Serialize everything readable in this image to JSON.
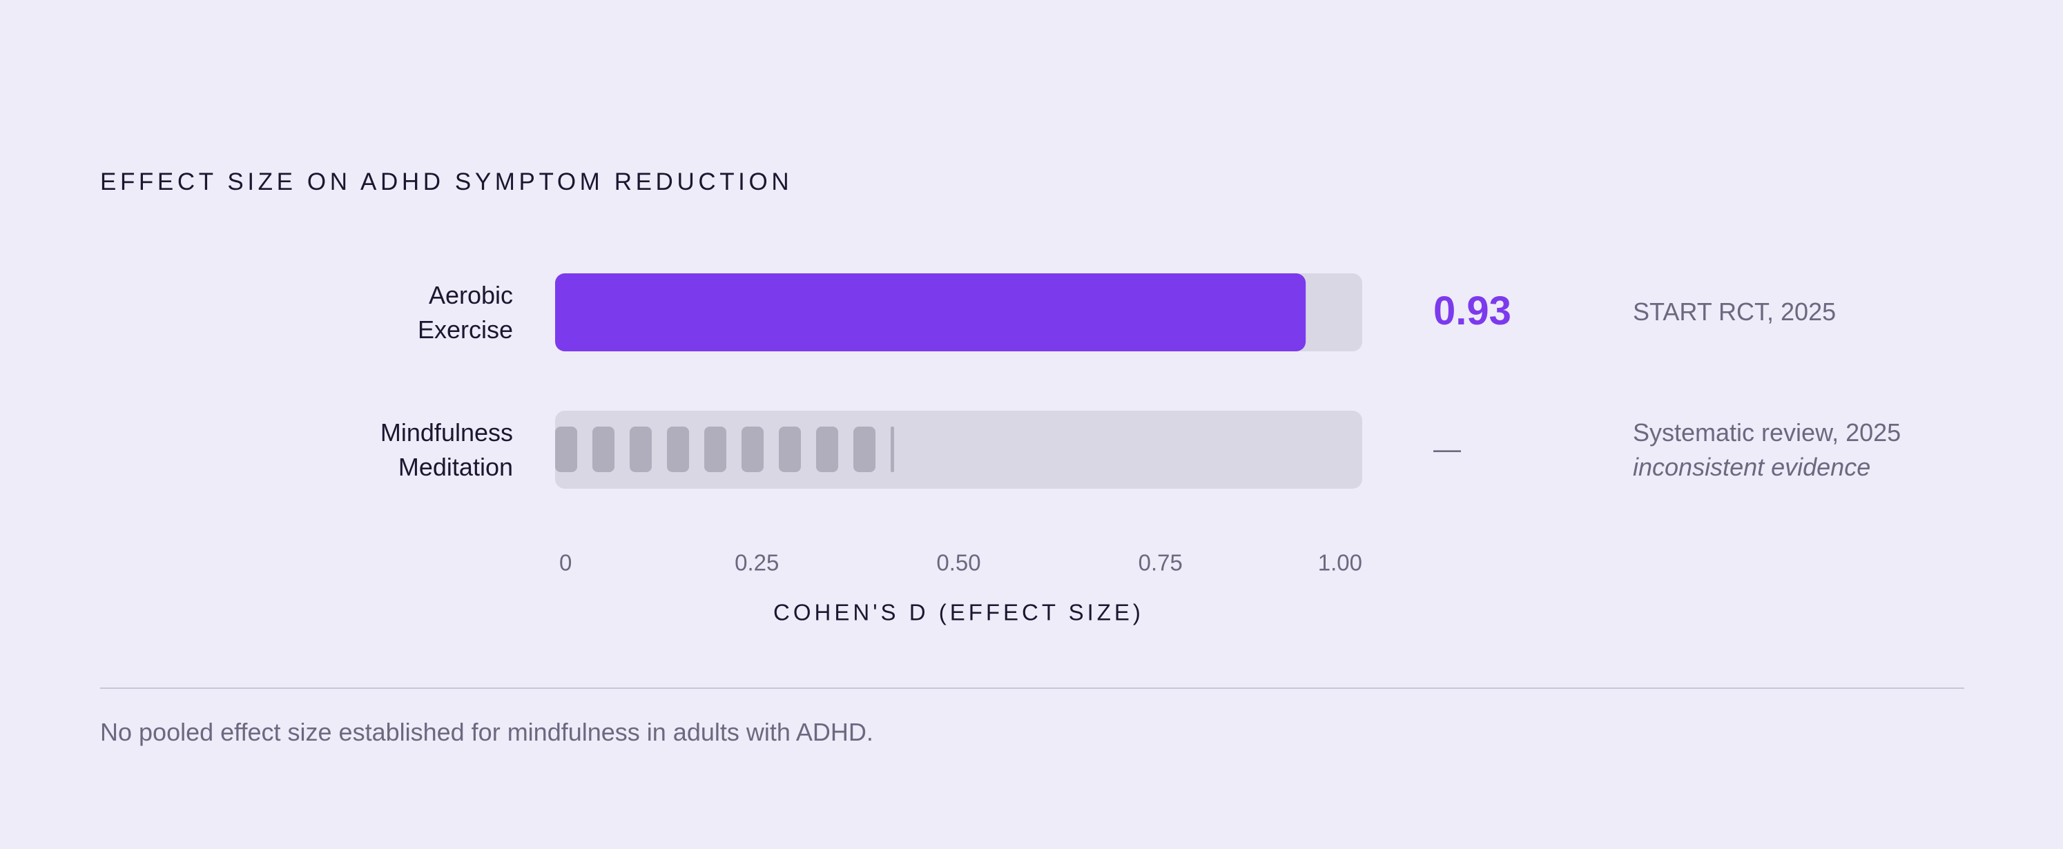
{
  "chart_data": {
    "type": "bar",
    "orientation": "horizontal",
    "title": "EFFECT SIZE ON ADHD SYMPTOM REDUCTION",
    "categories": [
      "Aerobic Exercise",
      "Mindfulness Meditation"
    ],
    "values": [
      0.93,
      null
    ],
    "value_labels": [
      "0.93",
      "—"
    ],
    "sources": [
      "START RCT, 2025",
      "Systematic review, 2025"
    ],
    "evidence_note": "inconsistent evidence",
    "color": "#7c3aed",
    "xlim": [
      0,
      1
    ],
    "xticks": [
      0,
      0.25,
      {
        "value": 0.5,
        "label": "0.50"
      },
      0.75,
      {
        "value": 1,
        "label": "1.00"
      }
    ],
    "xlabel": "COHEN'S D (EFFECT SIZE)",
    "grid": false,
    "footnote": "No pooled effect size established for mindfulness in adults with ADHD."
  }
}
